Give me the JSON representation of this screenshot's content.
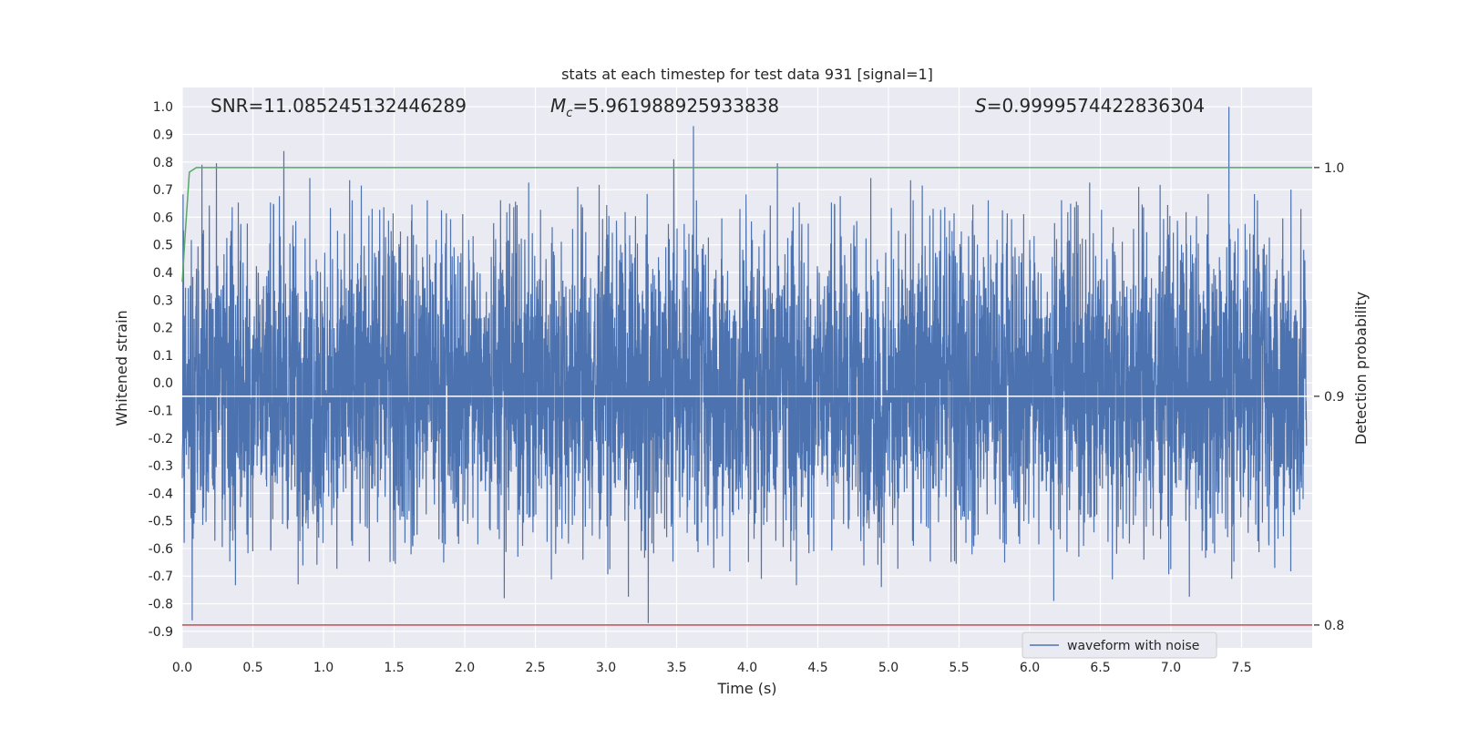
{
  "chart_data": {
    "type": "line",
    "title": "stats at each timestep for test data 931 [signal=1]",
    "xlabel": "Time (s)",
    "ylabel": "Whitened strain",
    "y2label": "Detection probability",
    "xlim": [
      0.0,
      8.0
    ],
    "ylim": [
      -0.96,
      1.07
    ],
    "y2lim": [
      0.79,
      1.035
    ],
    "grid": true,
    "legend": {
      "position": "lower-right",
      "entries": [
        "waveform with noise"
      ]
    },
    "x_ticks": [
      "0.0",
      "0.5",
      "1.0",
      "1.5",
      "2.0",
      "2.5",
      "3.0",
      "3.5",
      "4.0",
      "4.5",
      "5.0",
      "5.5",
      "6.0",
      "6.5",
      "7.0",
      "7.5"
    ],
    "x_tick_values": [
      0.0,
      0.5,
      1.0,
      1.5,
      2.0,
      2.5,
      3.0,
      3.5,
      4.0,
      4.5,
      5.0,
      5.5,
      6.0,
      6.5,
      7.0,
      7.5
    ],
    "y_ticks": [
      "1.0",
      "0.9",
      "0.8",
      "0.7",
      "0.6",
      "0.5",
      "0.4",
      "0.3",
      "0.2",
      "0.1",
      "0.0",
      "-0.1",
      "-0.2",
      "-0.3",
      "-0.4",
      "-0.5",
      "-0.6",
      "-0.7",
      "-0.8",
      "-0.9"
    ],
    "y_tick_values": [
      1.0,
      0.9,
      0.8,
      0.7,
      0.6,
      0.5,
      0.4,
      0.3,
      0.2,
      0.1,
      0.0,
      -0.1,
      -0.2,
      -0.3,
      -0.4,
      -0.5,
      -0.6,
      -0.7,
      -0.8,
      -0.9
    ],
    "y2_ticks": [
      "1.0",
      "0.9",
      "0.8"
    ],
    "y2_tick_values": [
      1.0,
      0.9,
      0.8
    ],
    "annotations": {
      "snr": "SNR=11.085245132446289",
      "mc_symbol": "M",
      "mc_sub": "c",
      "mc_value": "=5.961988925933838",
      "s_symbol": "S",
      "s_value": "=0.9999574422836304"
    },
    "series": [
      {
        "name": "waveform with noise",
        "axis": "left",
        "color": "#4c72b0",
        "x_range": [
          0.0,
          8.0
        ],
        "typical_range": [
          -0.3,
          0.3
        ],
        "peaks": [
          {
            "x": 0.14,
            "y": 0.79
          },
          {
            "x": 0.72,
            "y": 0.84
          },
          {
            "x": 3.48,
            "y": 0.81
          },
          {
            "x": 3.62,
            "y": 0.93
          },
          {
            "x": 7.41,
            "y": 1.0
          },
          {
            "x": 7.85,
            "y": 0.7
          },
          {
            "x": 0.07,
            "y": -0.86
          },
          {
            "x": 0.82,
            "y": -0.73
          },
          {
            "x": 2.28,
            "y": -0.78
          },
          {
            "x": 3.3,
            "y": -0.87
          },
          {
            "x": 4.1,
            "y": -0.71
          },
          {
            "x": 4.95,
            "y": -0.74
          },
          {
            "x": 6.17,
            "y": -0.79
          },
          {
            "x": 7.43,
            "y": -0.71
          }
        ]
      },
      {
        "name": "",
        "axis": "right",
        "color": "#55a868",
        "points": [
          [
            0.0,
            0.95
          ],
          [
            0.02,
            0.97
          ],
          [
            0.05,
            0.998
          ],
          [
            0.1,
            1.0
          ],
          [
            8.0,
            1.0
          ]
        ]
      },
      {
        "name": "",
        "axis": "right",
        "color": "#c44e52",
        "points": [
          [
            0.0,
            0.8
          ],
          [
            8.0,
            0.8
          ]
        ]
      },
      {
        "name": "",
        "axis": "right",
        "color": "#ffffff",
        "points": [
          [
            0.0,
            0.9
          ],
          [
            8.0,
            0.9
          ]
        ]
      }
    ]
  }
}
